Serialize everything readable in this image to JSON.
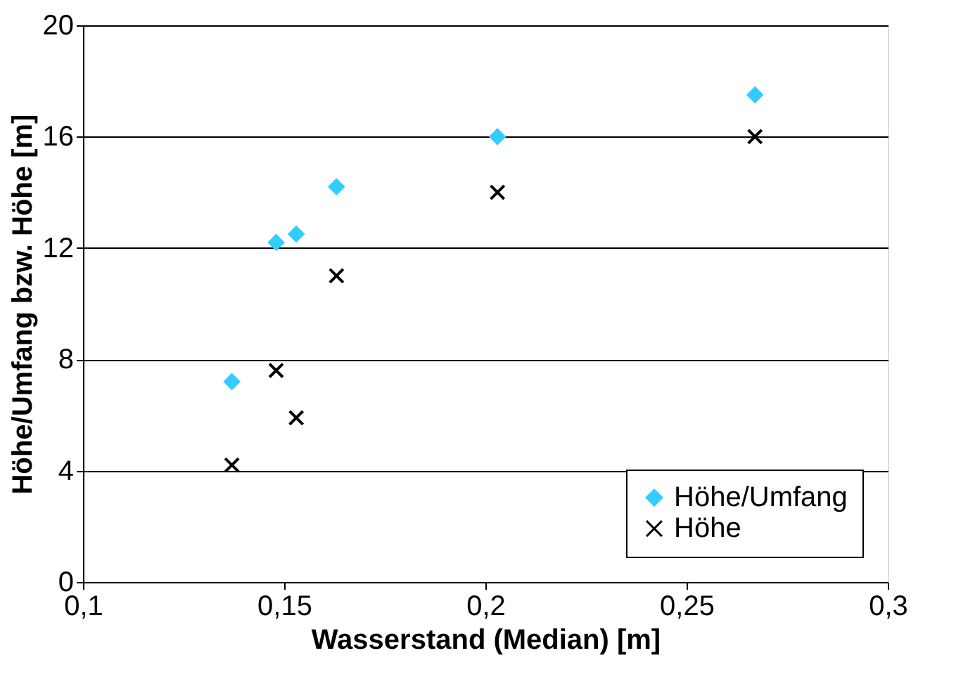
{
  "chart_data": {
    "type": "scatter",
    "xlabel": "Wasserstand (Median)  [m]",
    "ylabel": "Höhe/Umfang bzw. Höhe [m]",
    "xlim": [
      0.1,
      0.3
    ],
    "xticks": [
      {
        "value": 0.1,
        "label": "0,1"
      },
      {
        "value": 0.15,
        "label": "0,15"
      },
      {
        "value": 0.2,
        "label": "0,2"
      },
      {
        "value": 0.25,
        "label": "0,25"
      },
      {
        "value": 0.3,
        "label": "0,3"
      }
    ],
    "ylim": [
      0,
      20
    ],
    "yticks": [
      0,
      4,
      8,
      12,
      16,
      20
    ],
    "grid": "y",
    "legend": "bottom right",
    "series": [
      {
        "name": "Höhe/Umfang",
        "color": "#33ccff",
        "marker": "diamond",
        "x": [
          0.137,
          0.148,
          0.153,
          0.163,
          0.203,
          0.267
        ],
        "values": [
          7.2,
          12.2,
          12.5,
          14.2,
          16.0,
          17.5
        ]
      },
      {
        "name": "Höhe",
        "color": "#000000",
        "marker": "cross",
        "x": [
          0.137,
          0.148,
          0.153,
          0.163,
          0.203,
          0.267
        ],
        "values": [
          4.2,
          7.6,
          5.9,
          11.0,
          14.0,
          16.0
        ]
      }
    ]
  }
}
